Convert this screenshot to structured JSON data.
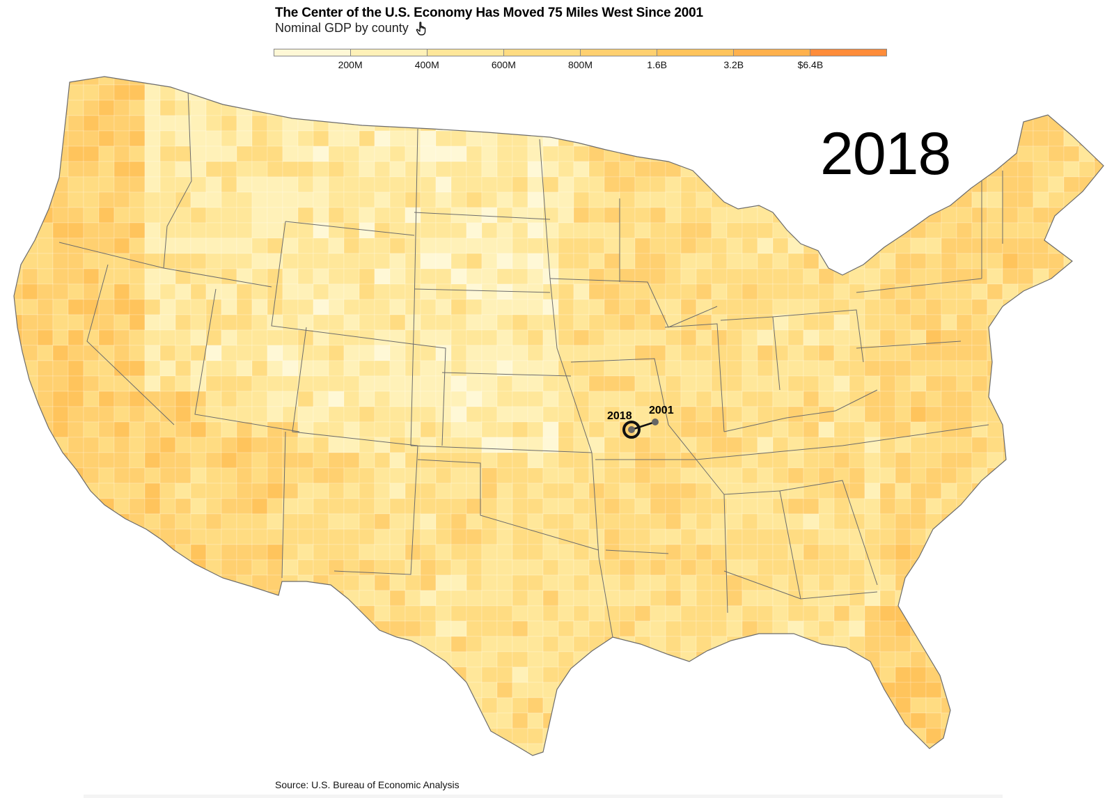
{
  "title": "The Center of the U.S. Economy Has Moved 75 Miles West Since 2001",
  "subtitle": "Nominal GDP by county",
  "year_display": "2018",
  "source": "Source: U.S. Bureau of Economic Analysis",
  "colors": {
    "scale": [
      "#fff8d6",
      "#fff1b8",
      "#ffe79a",
      "#ffdc82",
      "#ffd070",
      "#ffc45c",
      "#ffb14d",
      "#ff8c3a"
    ],
    "boundary": "#6b6b6b",
    "marker": "#111111",
    "marker_2001": "#666666"
  },
  "legend": {
    "ticks": [
      "200M",
      "400M",
      "600M",
      "800M",
      "1.6B",
      "3.2B",
      "$6.4B"
    ]
  },
  "markers": [
    {
      "label": "2018"
    },
    {
      "label": "2001"
    }
  ]
}
